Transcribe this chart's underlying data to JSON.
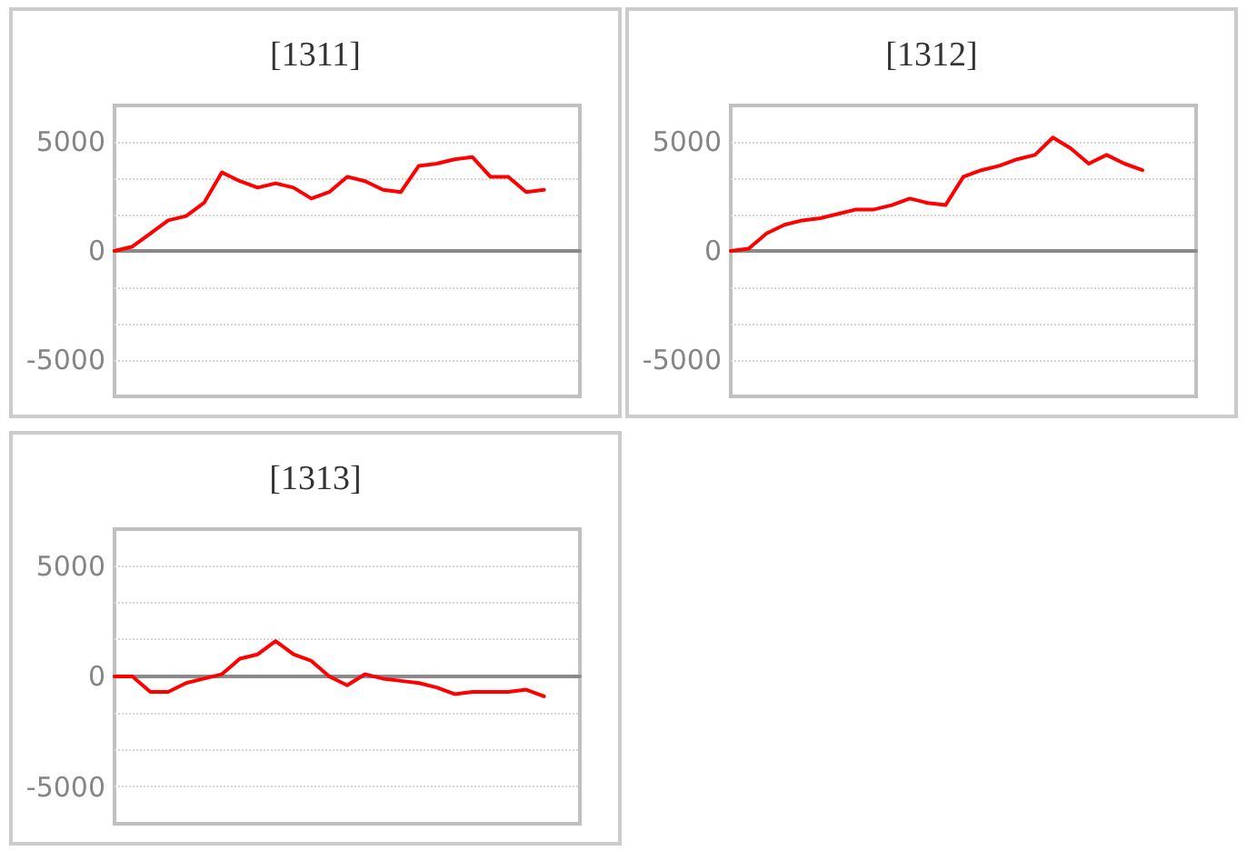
{
  "chart_data": [
    {
      "type": "line",
      "title": "[1311]",
      "categories": [
        null,
        null,
        null,
        null,
        null,
        null,
        null,
        null,
        null,
        null,
        null,
        null,
        null,
        null,
        null,
        null,
        null,
        null,
        null,
        null,
        null,
        null,
        null,
        null,
        null,
        null,
        null
      ],
      "color": "#ff0000",
      "values": [
        0,
        200,
        800,
        1400,
        1600,
        2200,
        3600,
        3200,
        2900,
        3100,
        2900,
        2400,
        2700,
        3400,
        3200,
        2800,
        2700,
        3900,
        4000,
        4200,
        4300,
        3400,
        3400,
        2700,
        2800,
        null,
        null
      ],
      "ylim": [
        -6666.67,
        6666.67
      ],
      "yticks": [
        -5000,
        {
          "value": -3333.33,
          "label": null
        },
        {
          "value": -1666.67,
          "label": null
        },
        0,
        {
          "value": 1666.67,
          "label": null
        },
        {
          "value": 3333.33,
          "label": null
        },
        5000
      ],
      "grid": "y",
      "marker": "none",
      "tick_labels": "y"
    },
    {
      "type": "line",
      "title": "[1312]",
      "categories": [
        null,
        null,
        null,
        null,
        null,
        null,
        null,
        null,
        null,
        null,
        null,
        null,
        null,
        null,
        null,
        null,
        null,
        null,
        null,
        null,
        null,
        null,
        null,
        null,
        null,
        null,
        null
      ],
      "color": "#ff0000",
      "values": [
        0,
        100,
        800,
        1200,
        1400,
        1500,
        1700,
        1900,
        1900,
        2100,
        2400,
        2200,
        2100,
        3400,
        3700,
        3900,
        4200,
        4400,
        5200,
        4700,
        4000,
        4400,
        4000,
        3700,
        null,
        null,
        null
      ],
      "ylim": [
        -6666.67,
        6666.67
      ],
      "yticks": [
        -5000,
        {
          "value": -3333.33,
          "label": null
        },
        {
          "value": -1666.67,
          "label": null
        },
        0,
        {
          "value": 1666.67,
          "label": null
        },
        {
          "value": 3333.33,
          "label": null
        },
        5000
      ],
      "grid": "y",
      "marker": "none",
      "tick_labels": "y"
    },
    {
      "type": "line",
      "title": "[1313]",
      "categories": [
        null,
        null,
        null,
        null,
        null,
        null,
        null,
        null,
        null,
        null,
        null,
        null,
        null,
        null,
        null,
        null,
        null,
        null,
        null,
        null,
        null,
        null,
        null,
        null,
        null,
        null,
        null
      ],
      "color": "#ff0000",
      "values": [
        0,
        0,
        -700,
        -700,
        -300,
        -100,
        100,
        800,
        1000,
        1600,
        1000,
        700,
        0,
        -400,
        100,
        -100,
        -200,
        -300,
        -500,
        -800,
        -700,
        -700,
        -700,
        -600,
        -900,
        null,
        null
      ],
      "ylim": [
        -6666.67,
        6666.67
      ],
      "yticks": [
        -5000,
        {
          "value": -3333.33,
          "label": null
        },
        {
          "value": -1666.67,
          "label": null
        },
        0,
        {
          "value": 1666.67,
          "label": null
        },
        {
          "value": 3333.33,
          "label": null
        },
        5000
      ],
      "grid": "y",
      "marker": "none",
      "tick_labels": "y"
    }
  ]
}
